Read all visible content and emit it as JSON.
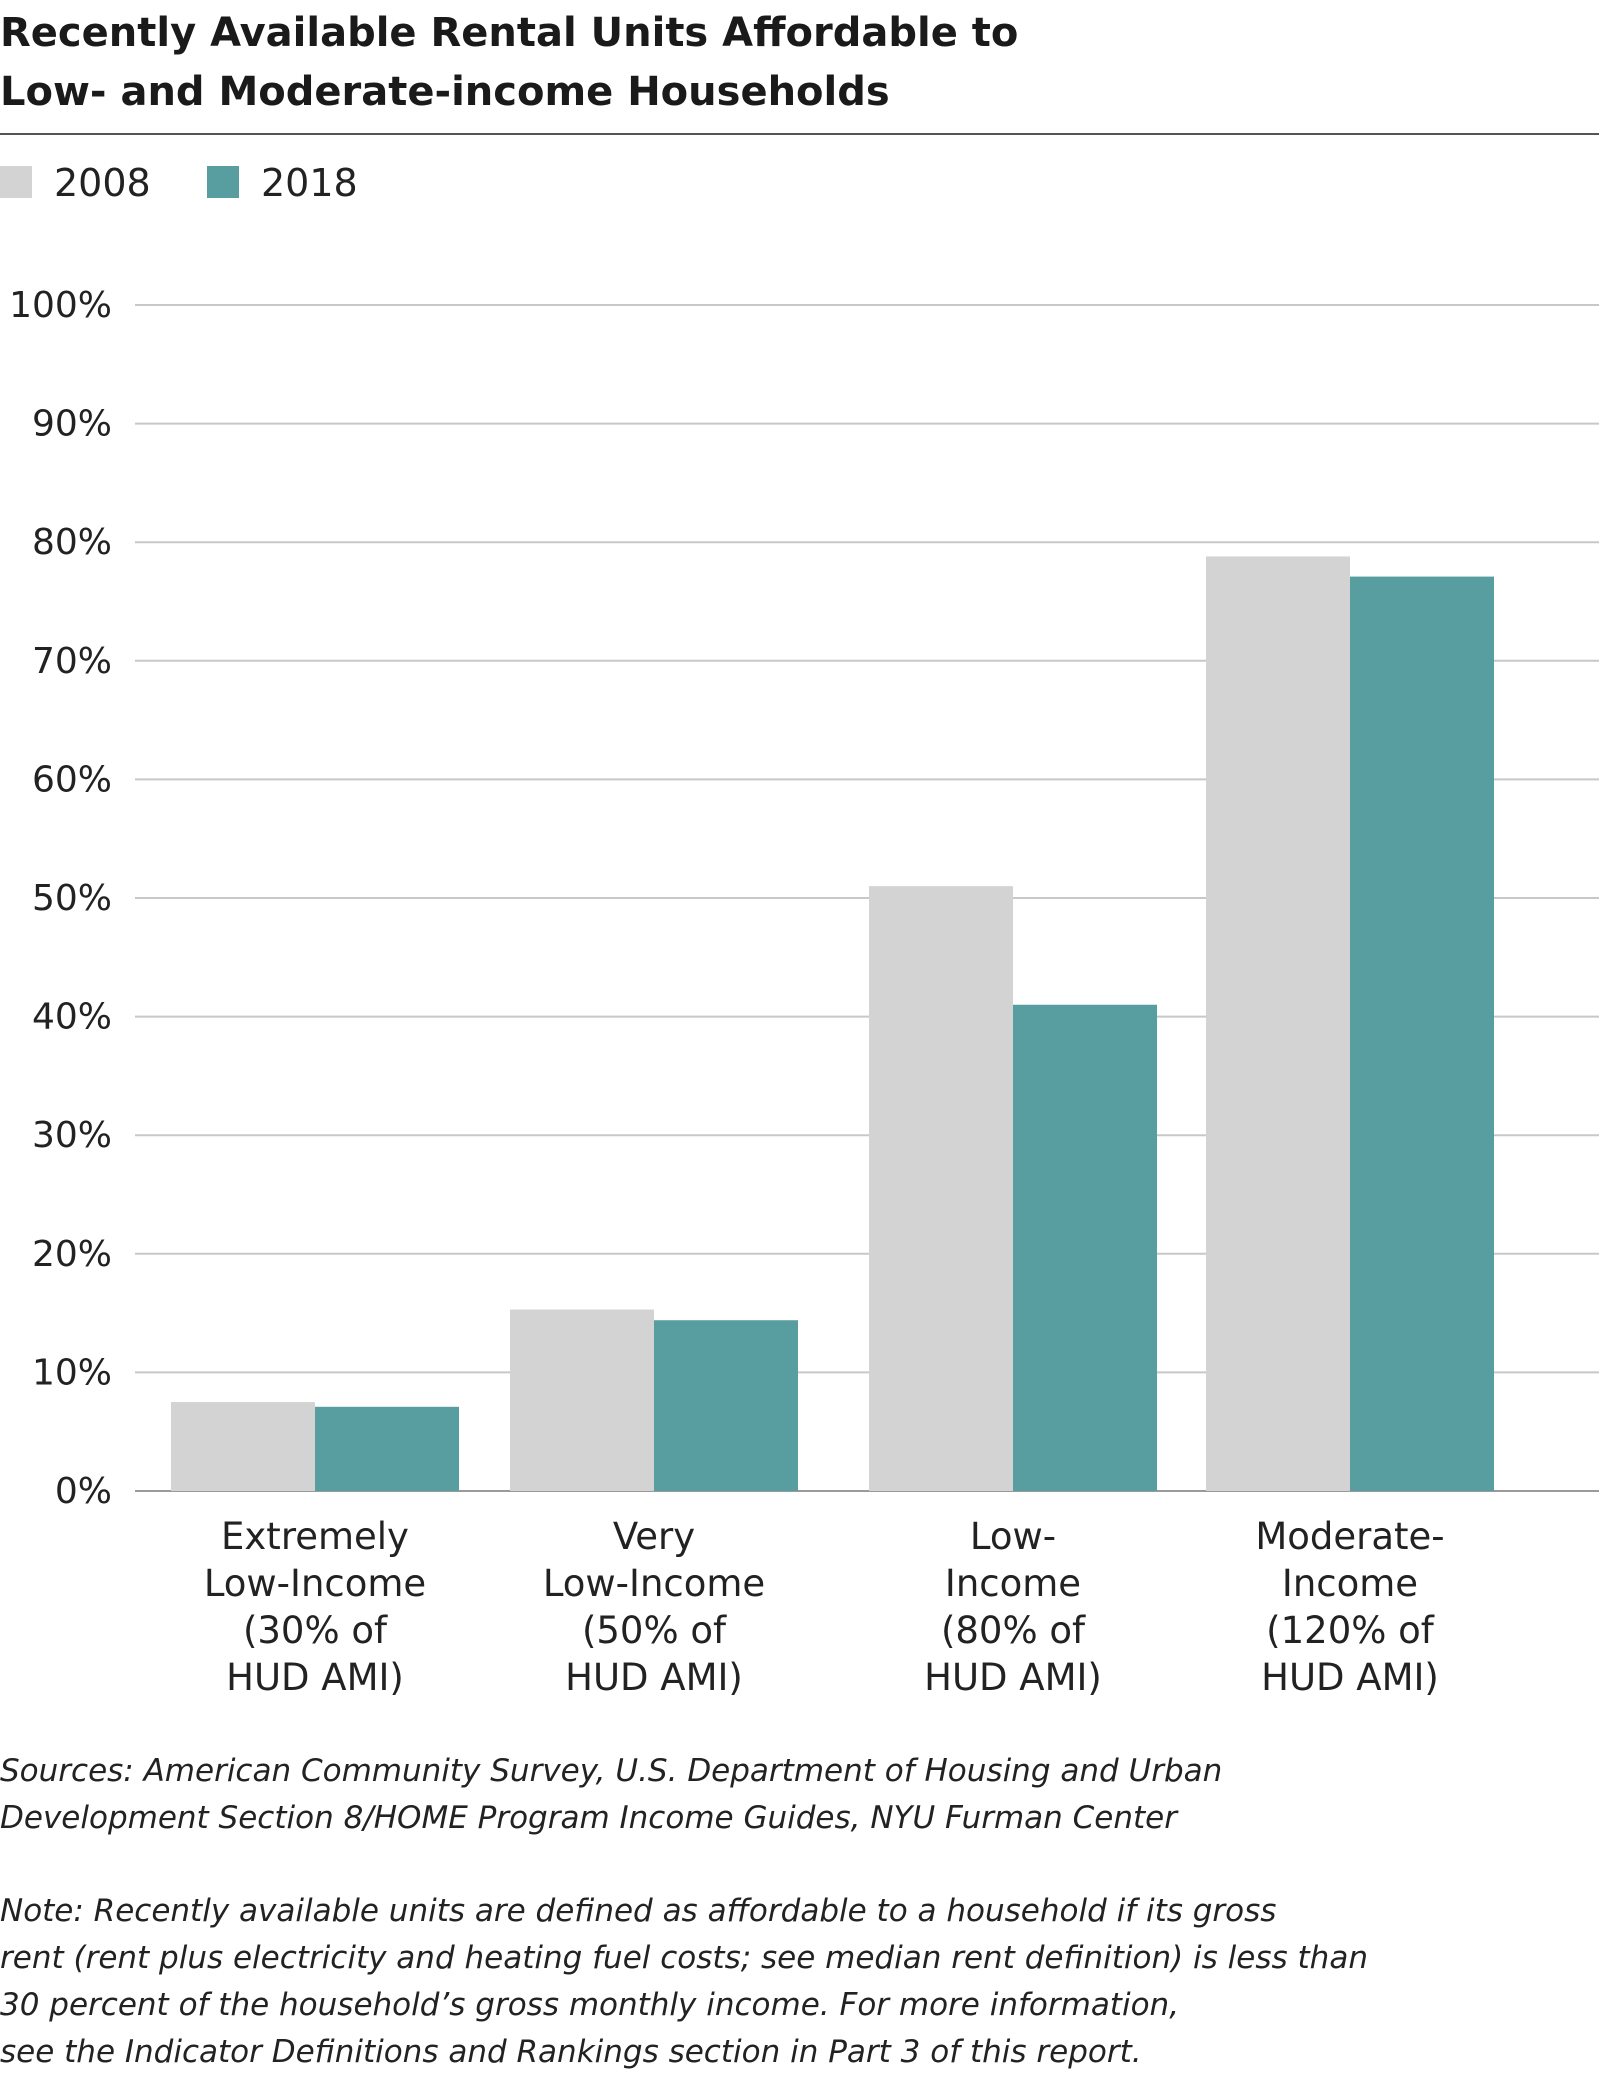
{
  "header": {
    "title_lines": [
      "Recently Available Rental Units Affordable to",
      "Low- and Moderate-income Households"
    ]
  },
  "legend": [
    {
      "label": "2008",
      "color": "#d3d3d3"
    },
    {
      "label": "2018",
      "color": "#589d9f"
    }
  ],
  "chart_data": {
    "type": "bar",
    "title": "Recently Available Rental Units Affordable to Low- and Moderate-income Households",
    "xlabel": "",
    "ylabel": "",
    "ylim": [
      0,
      100
    ],
    "yticks": [
      "0%",
      "10%",
      "20%",
      "30%",
      "40%",
      "50%",
      "60%",
      "70%",
      "80%",
      "90%",
      "100%"
    ],
    "grid": true,
    "legend_position": "top-left",
    "categories": [
      [
        "Extremely",
        "Low-Income",
        "(30% of",
        "HUD AMI)"
      ],
      [
        "Very",
        "Low-Income",
        "(50% of",
        "HUD AMI)"
      ],
      [
        "Low-",
        "Income",
        "(80% of",
        "HUD AMI)"
      ],
      [
        "Moderate-",
        "Income",
        "(120% of",
        "HUD AMI)"
      ]
    ],
    "series": [
      {
        "name": "2008",
        "color": "#d3d3d3",
        "values": [
          7.5,
          15.3,
          51.0,
          78.8
        ]
      },
      {
        "name": "2018",
        "color": "#589d9f",
        "values": [
          7.1,
          14.4,
          41.0,
          77.1
        ]
      }
    ]
  },
  "footer": {
    "sources_lines": [
      "Sources: American Community Survey, U.S. Department of Housing and Urban",
      "Development Section 8/HOME Program Income Guides, NYU Furman Center"
    ],
    "note_lines": [
      "Note: Recently available units are defined as affordable to a household if its gross",
      "rent (rent plus electricity and heating fuel costs; see median rent definition) is less than",
      "30 percent of the household’s gross monthly income. For more information,",
      "see the Indicator Definitions and Rankings section in Part 3 of this report."
    ]
  }
}
